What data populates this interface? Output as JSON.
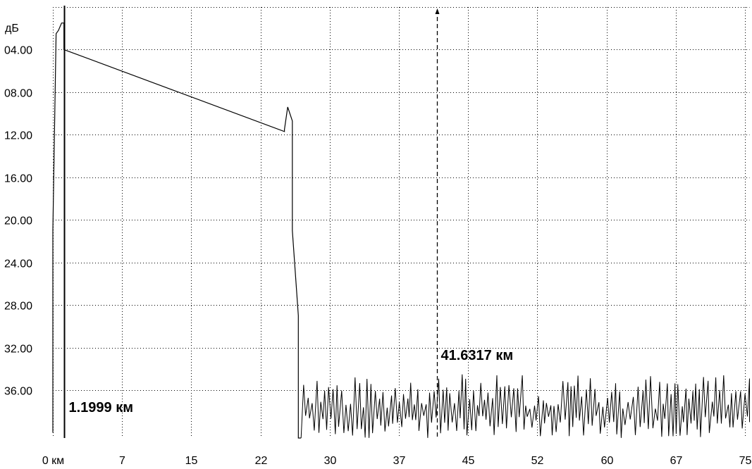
{
  "chart_data": {
    "type": "line",
    "title": "",
    "ylabel": "дБ",
    "xlabel": "",
    "xlim": [
      0,
      75.5
    ],
    "ylim": [
      0,
      40.5
    ],
    "y_inverted": true,
    "grid": true,
    "y_ticks": [
      "04.00",
      "08.00",
      "12.00",
      "16.00",
      "20.00",
      "24.00",
      "28.00",
      "32.00",
      "36.00"
    ],
    "y_tick_values": [
      4,
      8,
      12,
      16,
      20,
      24,
      28,
      32,
      36
    ],
    "x_ticks": [
      "0 км",
      "7",
      "15",
      "22",
      "30",
      "37",
      "45",
      "52",
      "60",
      "67",
      "75"
    ],
    "x_tick_values": [
      0,
      7.5,
      15,
      22.5,
      30,
      37.5,
      45,
      52.5,
      60,
      67.5,
      75
    ],
    "series": [
      {
        "color": "#000000",
        "x": [
          0,
          0,
          0.35,
          0.6,
          0.95,
          1.2,
          1.2,
          25.1,
          25.1,
          25.45,
          25.95,
          25.95,
          26.6,
          26.6,
          26.9
        ],
        "y": [
          40.0,
          21.0,
          2.5,
          2.2,
          1.5,
          1.5,
          4.0,
          11.7,
          11.5,
          9.4,
          10.7,
          21.0,
          29.0,
          40.5,
          40.5
        ]
      }
    ],
    "noise": {
      "x_range": [
        26.9,
        75.5
      ],
      "y_range": [
        34.5,
        40.5
      ]
    },
    "markers": [
      {
        "x": 1.1999,
        "label": "1.1999 км",
        "style": "solid"
      },
      {
        "x": 41.6317,
        "label": "41.6317 км",
        "style": "dashed"
      }
    ]
  }
}
